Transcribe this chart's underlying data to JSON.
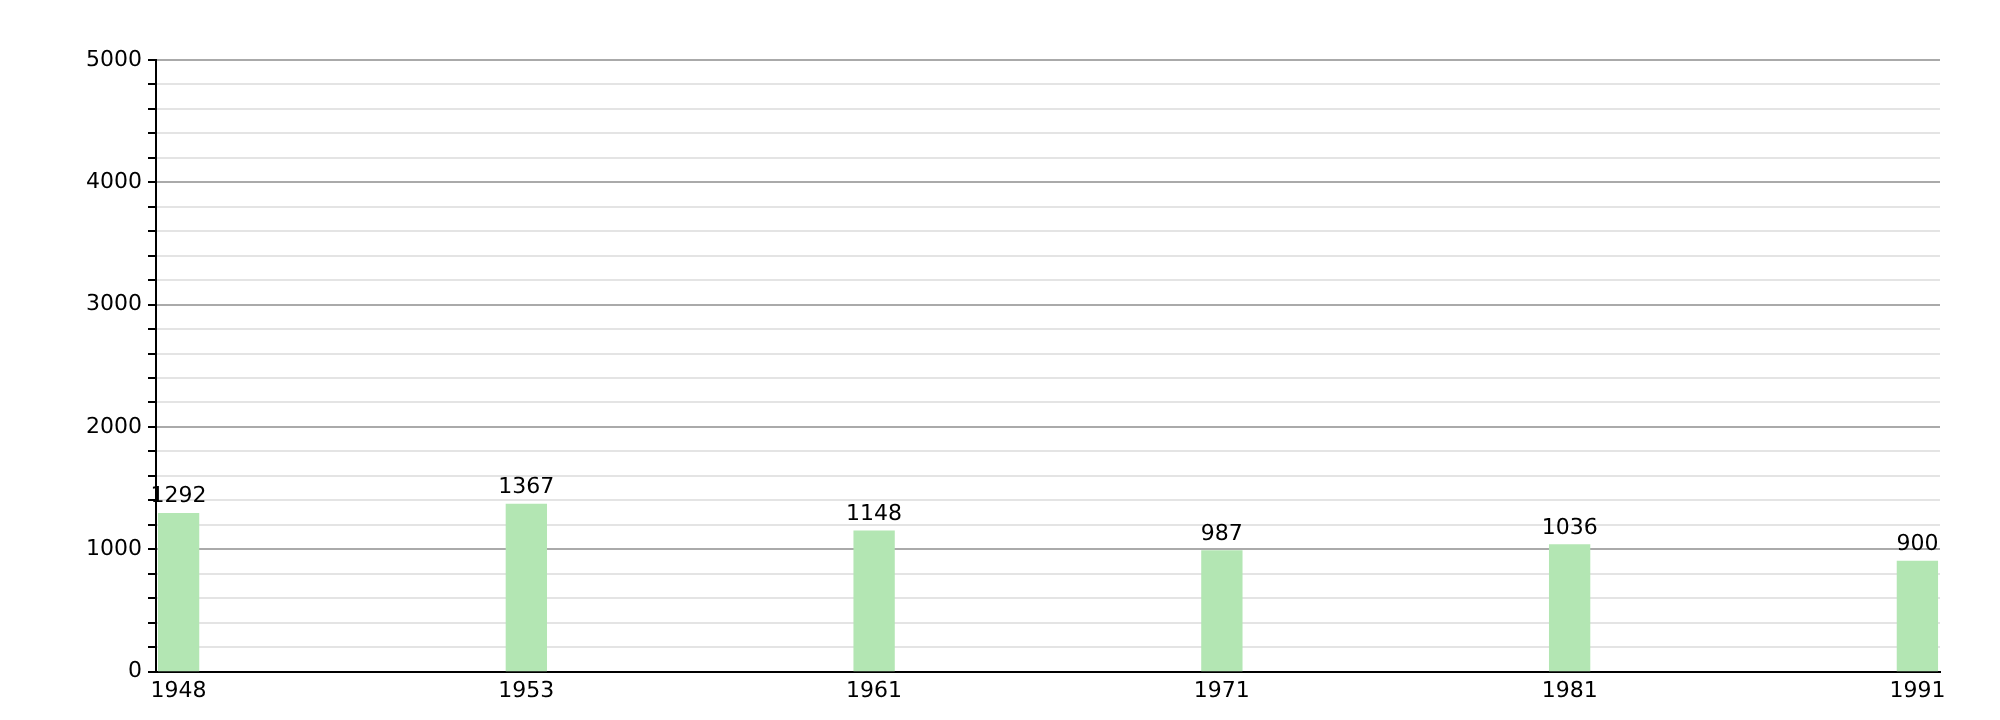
{
  "chart_data": {
    "type": "bar",
    "categories": [
      "1948",
      "1953",
      "1961",
      "1971",
      "1981",
      "1991"
    ],
    "values": [
      1292,
      1367,
      1148,
      987,
      1036,
      900
    ],
    "color": "#b3e6b3",
    "ylim": [
      0,
      5000
    ],
    "yticks": [
      0,
      {
        "value": 200,
        "label": null
      },
      {
        "value": 400,
        "label": null
      },
      {
        "value": 600,
        "label": null
      },
      {
        "value": 800,
        "label": null
      },
      1000,
      {
        "value": 1200,
        "label": null
      },
      {
        "value": 1400,
        "label": null
      },
      {
        "value": 1600,
        "label": null
      },
      {
        "value": 1800,
        "label": null
      },
      2000,
      {
        "value": 2200,
        "label": null
      },
      {
        "value": 2400,
        "label": null
      },
      {
        "value": 2600,
        "label": null
      },
      {
        "value": 2800,
        "label": null
      },
      3000,
      {
        "value": 3200,
        "label": null
      },
      {
        "value": 3400,
        "label": null
      },
      {
        "value": 3600,
        "label": null
      },
      {
        "value": 3800,
        "label": null
      },
      4000,
      {
        "value": 4200,
        "label": null
      },
      {
        "value": 4400,
        "label": null
      },
      {
        "value": 4600,
        "label": null
      },
      {
        "value": 4800,
        "label": null
      },
      5000
    ],
    "grid": "y",
    "data_labels": true
  }
}
